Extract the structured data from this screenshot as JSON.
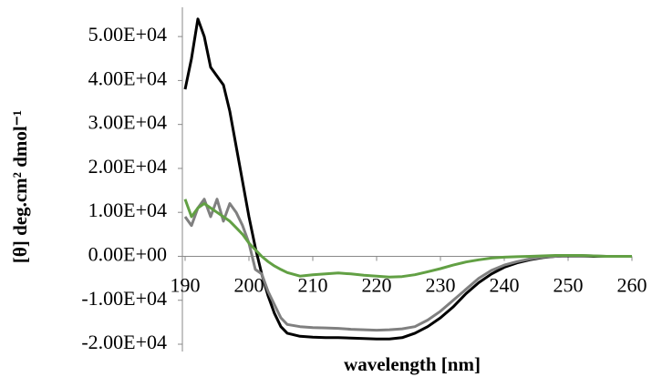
{
  "chart_data": {
    "type": "line",
    "y_label": "[θ] deg.cm² dmol⁻¹",
    "x_label": "wavelength [nm]",
    "x": [
      190,
      191,
      192,
      193,
      194,
      195,
      196,
      197,
      198,
      199,
      200,
      201,
      202,
      203,
      204,
      205,
      206,
      208,
      210,
      212,
      214,
      216,
      218,
      220,
      222,
      224,
      226,
      228,
      230,
      232,
      234,
      236,
      238,
      240,
      242,
      244,
      246,
      248,
      250,
      252,
      254,
      256,
      258,
      260
    ],
    "series": [
      {
        "color": "#000000",
        "values": [
          38000,
          45000,
          54000,
          50000,
          43000,
          41000,
          39000,
          33000,
          25000,
          17000,
          9000,
          2000,
          -4000,
          -9000,
          -13000,
          -16000,
          -17500,
          -18200,
          -18400,
          -18500,
          -18500,
          -18600,
          -18700,
          -18800,
          -18800,
          -18500,
          -17500,
          -16000,
          -14000,
          -11500,
          -8500,
          -6000,
          -4000,
          -2500,
          -1500,
          -800,
          -300,
          0,
          100,
          100,
          0,
          0,
          0,
          0
        ]
      },
      {
        "color": "#808080",
        "values": [
          9000,
          7000,
          11000,
          13000,
          9000,
          13000,
          8000,
          12000,
          10000,
          7000,
          3000,
          -3000,
          -4000,
          -8000,
          -11000,
          -14000,
          -15500,
          -16000,
          -16200,
          -16300,
          -16400,
          -16600,
          -16700,
          -16800,
          -16700,
          -16500,
          -16000,
          -14500,
          -12500,
          -10000,
          -7500,
          -5000,
          -3200,
          -2000,
          -1200,
          -600,
          -200,
          0,
          200,
          200,
          100,
          0,
          0,
          0
        ]
      },
      {
        "color": "#62a044",
        "values": [
          13000,
          9000,
          11000,
          12000,
          11000,
          10000,
          9000,
          8000,
          6500,
          5000,
          3000,
          1500,
          0,
          -1200,
          -2200,
          -3000,
          -3700,
          -4500,
          -4200,
          -4000,
          -3800,
          -4000,
          -4300,
          -4500,
          -4700,
          -4600,
          -4200,
          -3500,
          -2800,
          -2000,
          -1300,
          -800,
          -400,
          -200,
          -100,
          0,
          100,
          200,
          200,
          200,
          100,
          0,
          0,
          0
        ]
      }
    ],
    "xlim": [
      190,
      260
    ],
    "xticks": [
      190,
      200,
      210,
      220,
      230,
      240,
      250,
      260
    ],
    "ylim": [
      -20000,
      55000
    ],
    "yticks": [
      {
        "value": -20000,
        "label": "-2.00E+04"
      },
      {
        "value": -10000,
        "label": "-1.00E+04"
      },
      {
        "value": 0,
        "label": "0.00E+00"
      },
      {
        "value": 10000,
        "label": "1.00E+04"
      },
      {
        "value": 20000,
        "label": "2.00E+04"
      },
      {
        "value": 30000,
        "label": "3.00E+04"
      },
      {
        "value": 40000,
        "label": "4.00E+04"
      },
      {
        "value": 50000,
        "label": "5.00E+04"
      }
    ]
  }
}
